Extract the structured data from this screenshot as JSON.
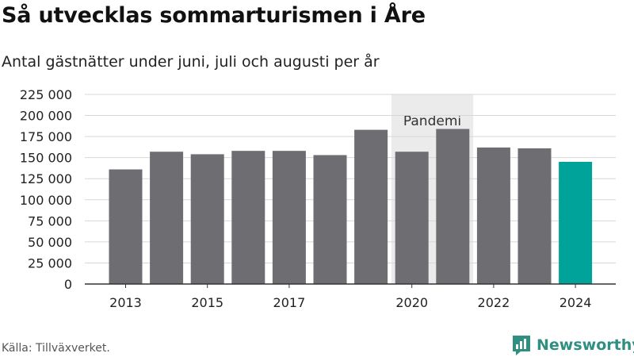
{
  "header": {
    "title": "Så utvecklas sommarturismen i Åre",
    "subtitle": "Antal gästnätter under juni, juli och augusti per år"
  },
  "footer": {
    "source": "Källa: Tillväxverket.",
    "brand": "Newsworthy",
    "brand_icon": "newsworthy-logo-icon"
  },
  "colors": {
    "bar": "#6e6d72",
    "highlight": "#00a39a",
    "pandemic_band": "#ebebeb",
    "brand": "#2f8f80"
  },
  "chart_data": {
    "type": "bar",
    "title": "Så utvecklas sommarturismen i Åre",
    "subtitle": "Antal gästnätter under juni, juli och augusti per år",
    "categories": [
      "2013",
      "2014",
      "2015",
      "2016",
      "2017",
      "2018",
      "2019",
      "2020",
      "2021",
      "2022",
      "2023",
      "2024"
    ],
    "values": [
      136000,
      157000,
      154000,
      158000,
      158000,
      153000,
      183000,
      157000,
      184000,
      162000,
      161000,
      145000
    ],
    "highlight_category": "2024",
    "x_tick_labels": [
      "2013",
      "2015",
      "2017",
      "2020",
      "2022",
      "2024"
    ],
    "y_ticks": [
      0,
      25000,
      50000,
      75000,
      100000,
      125000,
      150000,
      175000,
      200000,
      225000
    ],
    "y_tick_labels": [
      "0",
      "25 000",
      "50 000",
      "75 000",
      "100 000",
      "125 000",
      "150 000",
      "175 000",
      "200 000",
      "225 000"
    ],
    "ylim": [
      0,
      225000
    ],
    "grid": true,
    "legend": "none",
    "annotations": [
      {
        "text": "Pandemi",
        "from": "2020",
        "to": "2021"
      }
    ]
  }
}
